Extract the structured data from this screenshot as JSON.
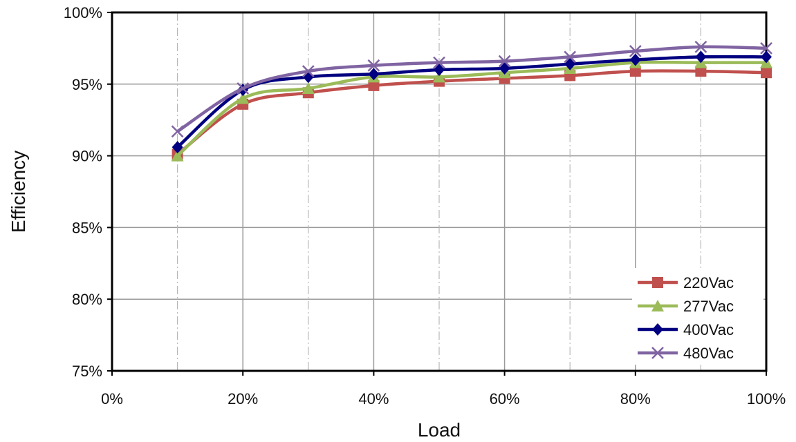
{
  "chart_data": {
    "type": "line",
    "xlabel": "Load",
    "ylabel": "Efficiency",
    "xlim": [
      0,
      100
    ],
    "ylim": [
      75,
      100
    ],
    "x_ticks": [
      0,
      20,
      40,
      60,
      80,
      100
    ],
    "x_tick_labels": [
      "0%",
      "20%",
      "40%",
      "60%",
      "80%",
      "100%"
    ],
    "y_ticks": [
      75,
      80,
      85,
      90,
      95,
      100
    ],
    "y_tick_labels": [
      "75%",
      "80%",
      "85%",
      "90%",
      "95%",
      "100%"
    ],
    "grid": true,
    "legend_position": "bottom-right",
    "x": [
      10,
      20,
      30,
      40,
      50,
      60,
      70,
      80,
      90,
      100
    ],
    "series": [
      {
        "name": "220Vac",
        "color": "#c0504d",
        "marker": "square",
        "values": [
          90.1,
          93.6,
          94.4,
          94.9,
          95.2,
          95.4,
          95.6,
          95.9,
          95.9,
          95.8
        ]
      },
      {
        "name": "277Vac",
        "color": "#9bbb59",
        "marker": "triangle",
        "values": [
          90.0,
          94.0,
          94.7,
          95.5,
          95.5,
          95.8,
          96.1,
          96.5,
          96.5,
          96.5
        ]
      },
      {
        "name": "400Vac",
        "color": "#000080",
        "marker": "diamond",
        "values": [
          90.6,
          94.6,
          95.5,
          95.7,
          96.0,
          96.1,
          96.4,
          96.7,
          96.9,
          96.9
        ]
      },
      {
        "name": "480Vac",
        "color": "#8064a2",
        "marker": "x",
        "values": [
          91.7,
          94.7,
          95.9,
          96.3,
          96.5,
          96.6,
          96.9,
          97.3,
          97.6,
          97.5
        ]
      }
    ]
  }
}
